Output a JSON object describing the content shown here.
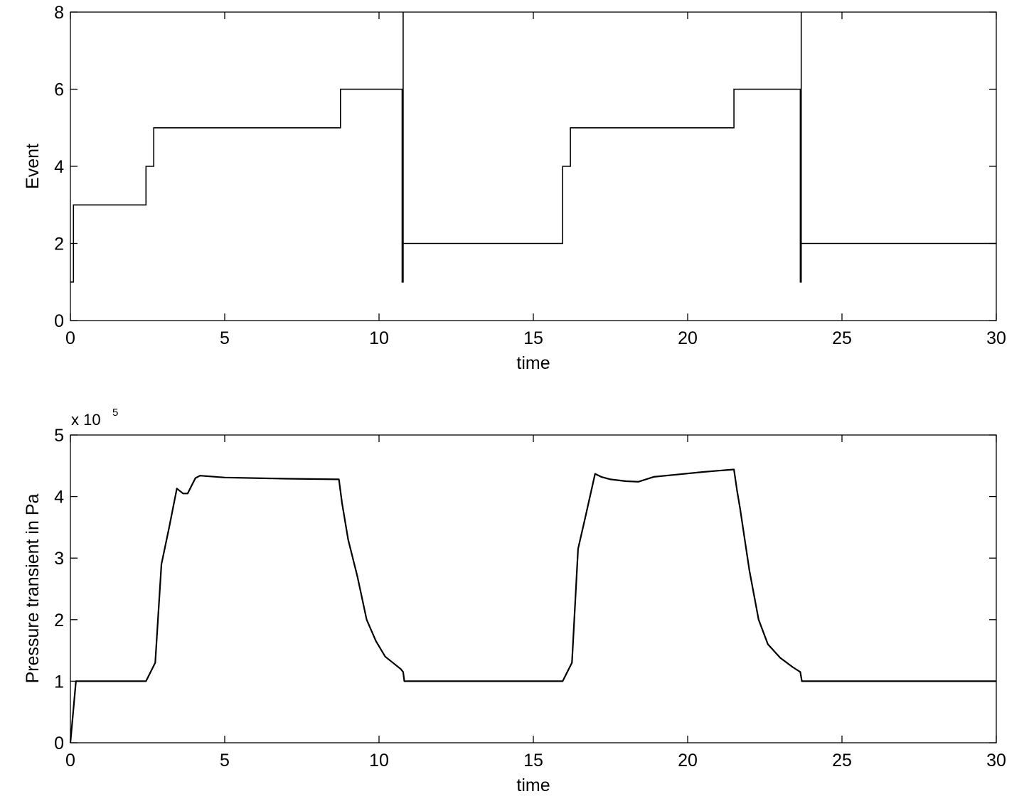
{
  "chart_data": [
    {
      "type": "line",
      "title": "",
      "xlabel": "time",
      "ylabel": "Event",
      "xlim": [
        0,
        30
      ],
      "ylim": [
        0,
        8
      ],
      "xticks": [
        0,
        5,
        10,
        15,
        20,
        25,
        30
      ],
      "yticks": [
        0,
        2,
        4,
        6,
        8
      ],
      "grid": false,
      "line_color": "#000000",
      "series": [
        {
          "points": [
            [
              0,
              1
            ],
            [
              0.1,
              1
            ],
            [
              0.1,
              3
            ],
            [
              2.45,
              3
            ],
            [
              2.45,
              4
            ],
            [
              2.7,
              4
            ],
            [
              2.7,
              5
            ],
            [
              8.75,
              5
            ],
            [
              8.75,
              6
            ],
            [
              10.75,
              6
            ],
            [
              10.75,
              1
            ],
            [
              10.78,
              1
            ],
            [
              10.78,
              8
            ],
            [
              10.78,
              2
            ],
            [
              15.95,
              2
            ],
            [
              15.95,
              4
            ],
            [
              16.2,
              4
            ],
            [
              16.2,
              5
            ],
            [
              21.5,
              5
            ],
            [
              21.5,
              6
            ],
            [
              23.65,
              6
            ],
            [
              23.65,
              1
            ],
            [
              23.68,
              1
            ],
            [
              23.68,
              8
            ],
            [
              23.68,
              2
            ],
            [
              30,
              2
            ]
          ]
        }
      ]
    },
    {
      "type": "line",
      "title": "",
      "xlabel": "time",
      "ylabel": "Pressure transient in Pa",
      "y_multiplier": "x 10",
      "y_exponent": "5",
      "xlim": [
        0,
        30
      ],
      "ylim": [
        0,
        5
      ],
      "xticks": [
        0,
        5,
        10,
        15,
        20,
        25,
        30
      ],
      "yticks": [
        0,
        1,
        2,
        3,
        4,
        5
      ],
      "grid": false,
      "line_color": "#000000",
      "series": [
        {
          "points": [
            [
              0,
              0
            ],
            [
              0.18,
              1.0
            ],
            [
              2.45,
              1.0
            ],
            [
              2.75,
              1.3
            ],
            [
              2.95,
              2.9
            ],
            [
              3.2,
              3.5
            ],
            [
              3.45,
              4.13
            ],
            [
              3.65,
              4.05
            ],
            [
              3.8,
              4.05
            ],
            [
              4.05,
              4.3
            ],
            [
              4.2,
              4.34
            ],
            [
              5,
              4.31
            ],
            [
              7,
              4.29
            ],
            [
              8.7,
              4.28
            ],
            [
              8.8,
              3.9
            ],
            [
              9.0,
              3.3
            ],
            [
              9.3,
              2.7
            ],
            [
              9.6,
              2.0
            ],
            [
              9.9,
              1.65
            ],
            [
              10.2,
              1.4
            ],
            [
              10.5,
              1.28
            ],
            [
              10.7,
              1.2
            ],
            [
              10.78,
              1.15
            ],
            [
              10.82,
              1.0
            ],
            [
              15.95,
              1.0
            ],
            [
              16.25,
              1.3
            ],
            [
              16.45,
              3.15
            ],
            [
              16.7,
              3.7
            ],
            [
              17.0,
              4.37
            ],
            [
              17.2,
              4.32
            ],
            [
              17.5,
              4.28
            ],
            [
              18.0,
              4.25
            ],
            [
              18.4,
              4.24
            ],
            [
              18.9,
              4.32
            ],
            [
              19.5,
              4.35
            ],
            [
              20.5,
              4.4
            ],
            [
              21.0,
              4.42
            ],
            [
              21.5,
              4.44
            ],
            [
              21.6,
              4.1
            ],
            [
              21.7,
              3.8
            ],
            [
              22.0,
              2.8
            ],
            [
              22.3,
              2.0
            ],
            [
              22.6,
              1.6
            ],
            [
              23.0,
              1.38
            ],
            [
              23.4,
              1.23
            ],
            [
              23.65,
              1.15
            ],
            [
              23.7,
              1.0
            ],
            [
              30,
              1.0
            ]
          ]
        }
      ]
    }
  ]
}
